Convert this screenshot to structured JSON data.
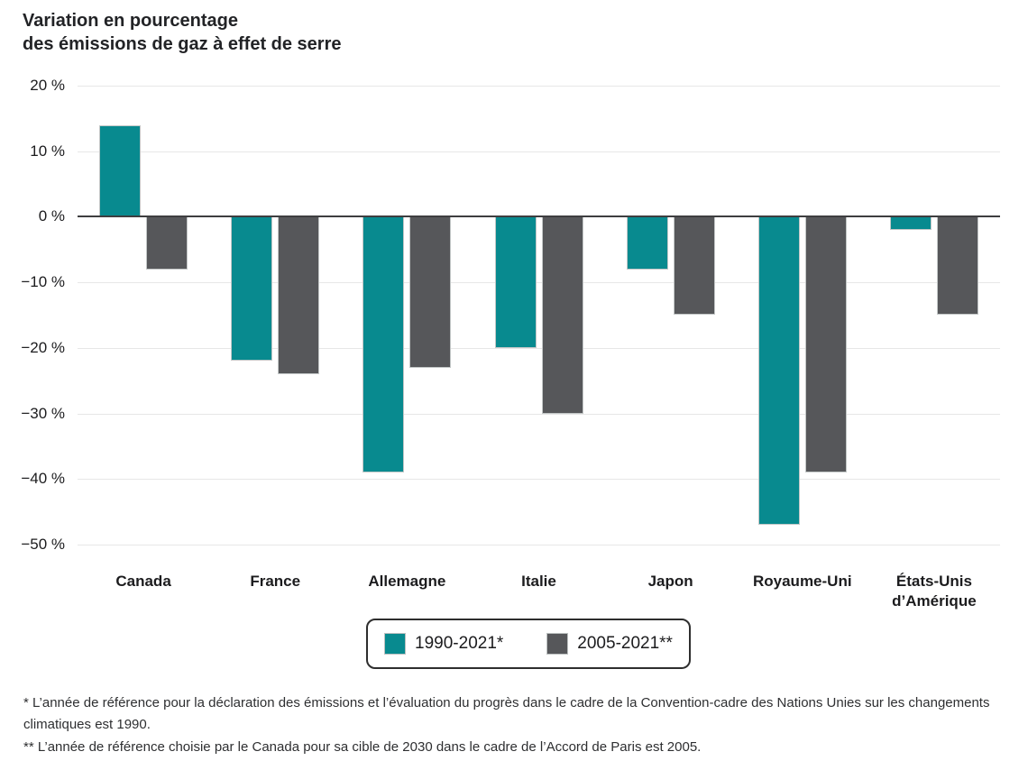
{
  "title": "Variation en pourcentage\ndes émissions de gaz à effet de serre",
  "chart_data": {
    "type": "bar",
    "title": "Variation en pourcentage des émissions de gaz à effet de serre",
    "unit": "%",
    "categories": [
      "Canada",
      "France",
      "Allemagne",
      "Italie",
      "Japon",
      "Royaume-Uni",
      "États-Unis\nd’Amérique"
    ],
    "series": [
      {
        "name": "1990-2021*",
        "color": "#088a8f",
        "values": [
          14,
          -22,
          -39,
          -20,
          -8,
          -47,
          -2
        ]
      },
      {
        "name": "2005-2021**",
        "color": "#56575a",
        "values": [
          -8,
          -24,
          -23,
          -30,
          -15,
          -39,
          -15
        ]
      }
    ],
    "ylim": [
      -50,
      20
    ],
    "yticks": [
      {
        "value": 20,
        "label": "20 %"
      },
      {
        "value": 10,
        "label": "10 %"
      },
      {
        "value": 0,
        "label": "0 %"
      },
      {
        "value": -10,
        "label": "−10 %"
      },
      {
        "value": -20,
        "label": "−20 %"
      },
      {
        "value": -30,
        "label": "−30 %"
      },
      {
        "value": -40,
        "label": "−40 %"
      },
      {
        "value": -50,
        "label": "−50 %"
      }
    ],
    "grid": true,
    "legend_position": "bottom-center"
  },
  "colors": {
    "teal_series": "#088a8f",
    "gray_series": "#56575a",
    "gridline": "#e7e7e7",
    "zero_axis": "#3e3e40",
    "text": "#1c1c1e"
  },
  "footnotes": [
    "* L’année de référence pour la déclaration des émissions et l’évaluation du progrès dans le cadre de la Convention-cadre des Nations Unies sur les changements climatiques est 1990.",
    "** L’année de référence choisie par le Canada pour sa cible de 2030 dans le cadre de l’Accord de Paris est 2005."
  ]
}
